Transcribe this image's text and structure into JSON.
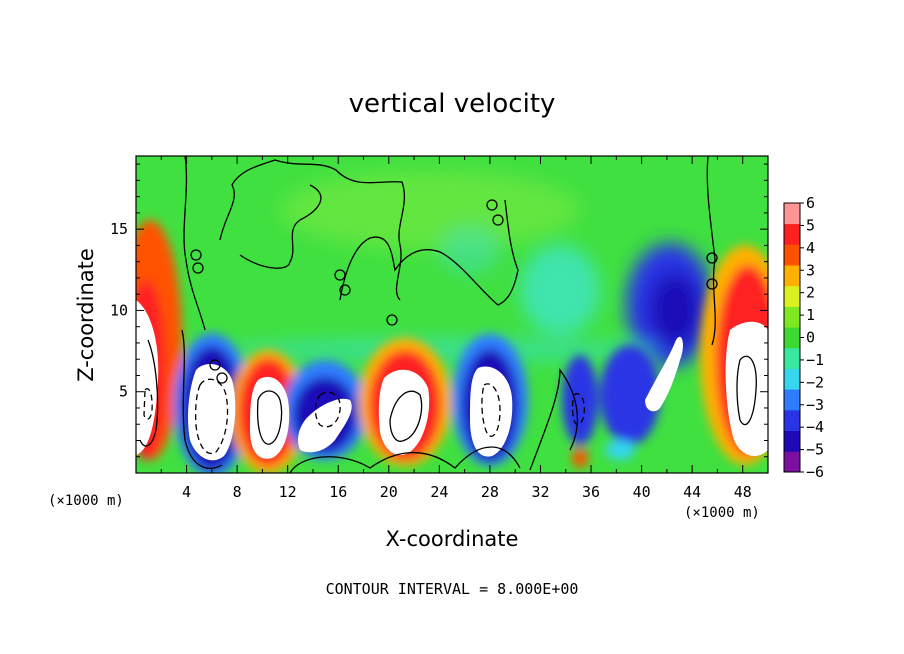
{
  "chart_data": {
    "type": "heatmap",
    "title": "vertical velocity",
    "xlabel": "X-coordinate",
    "ylabel": "Z-coordinate",
    "x_unit": "(×1000 m)",
    "z_unit": "(×1000 m)",
    "footer": "CONTOUR INTERVAL = 8.000E+00",
    "xlim": [
      0,
      50
    ],
    "ylim": [
      0,
      19.5
    ],
    "x_ticks": [
      4,
      8,
      12,
      16,
      20,
      24,
      28,
      32,
      36,
      40,
      44,
      48
    ],
    "x_tick_labels": [
      "4",
      "8",
      "12",
      "16",
      "20",
      "24",
      "28",
      "32",
      "36",
      "40",
      "44",
      "48"
    ],
    "y_ticks": [
      5,
      10,
      15
    ],
    "y_tick_labels": [
      "5",
      "10",
      "15"
    ],
    "colorbar": {
      "levels": [
        -6,
        -5,
        -4,
        -3,
        -2,
        -1,
        0,
        1,
        2,
        3,
        4,
        5,
        6
      ],
      "labels": [
        "−6",
        "−5",
        "−4",
        "−3",
        "−2",
        "−1",
        "0",
        "1",
        "2",
        "3",
        "4",
        "5",
        "6"
      ],
      "colors": [
        "#7a0fa0",
        "#1e08b8",
        "#2a34e6",
        "#2f7dff",
        "#36d6ee",
        "#38e8a0",
        "#3ed832",
        "#7de81f",
        "#dcf020",
        "#ffb000",
        "#ff5200",
        "#ff2020",
        "#ff9494"
      ]
    },
    "background_value_color": "#40e040",
    "saturated_color": "#ffffff",
    "contour_interval": 8.0
  }
}
